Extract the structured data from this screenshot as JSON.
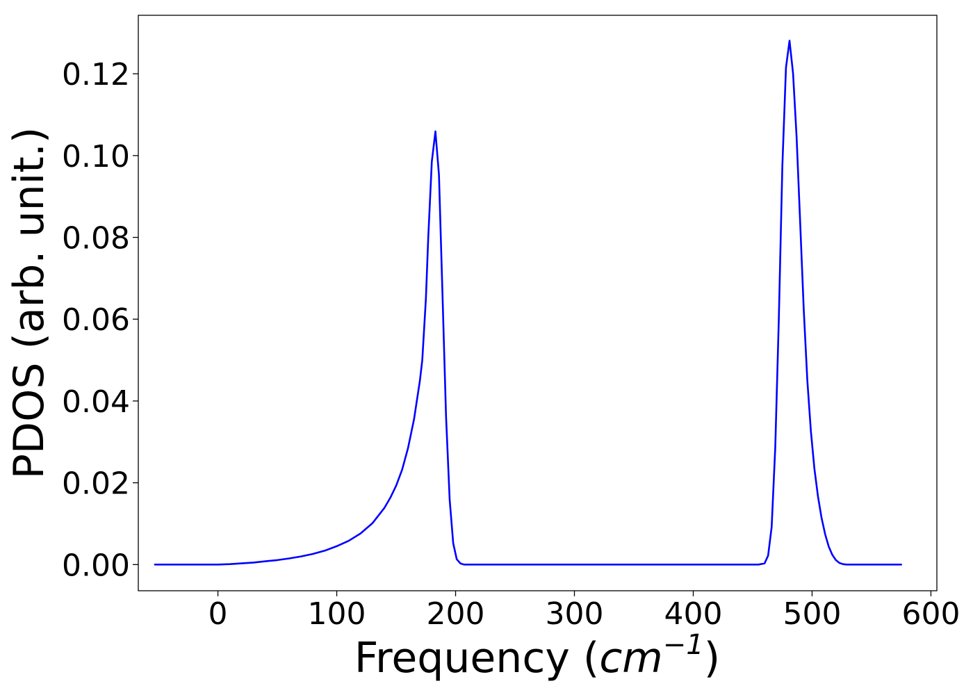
{
  "chart_data": {
    "type": "line",
    "xlabel": "Frequency",
    "xlabel_unit_base": "cm",
    "xlabel_unit_exp": "−1",
    "ylabel": "PDOS (arb. unit.)",
    "xlim": [
      -67,
      605
    ],
    "ylim": [
      -0.0064,
      0.1343
    ],
    "xticks": [
      0,
      100,
      200,
      300,
      400,
      500,
      600
    ],
    "xtick_labels": [
      "0",
      "100",
      "200",
      "300",
      "400",
      "500",
      "600"
    ],
    "yticks": [
      0.0,
      0.02,
      0.04,
      0.06,
      0.08,
      0.1,
      0.12
    ],
    "ytick_labels": [
      "0.00",
      "0.02",
      "0.04",
      "0.06",
      "0.08",
      "0.10",
      "0.12"
    ],
    "grid": false,
    "series": [
      {
        "color": "#0000ff",
        "x": [
          -53,
          0,
          10,
          20,
          30,
          40,
          50,
          60,
          70,
          80,
          90,
          100,
          110,
          120,
          130,
          140,
          145,
          150,
          155,
          160,
          165,
          170,
          172,
          175,
          177,
          180,
          183,
          186,
          189,
          192,
          195,
          198,
          201,
          204,
          207,
          210,
          220,
          300,
          400,
          455,
          460,
          463,
          466,
          469,
          472,
          475,
          478,
          481,
          484,
          487,
          490,
          493,
          496,
          499,
          502,
          505,
          508,
          511,
          514,
          517,
          520,
          523,
          526,
          529,
          532,
          535,
          540,
          575
        ],
        "y": [
          0,
          0,
          0.0001,
          0.0003,
          0.0005,
          0.0008,
          0.0011,
          0.0015,
          0.002,
          0.0026,
          0.0034,
          0.0045,
          0.0058,
          0.0076,
          0.0101,
          0.0138,
          0.0163,
          0.0193,
          0.0232,
          0.0285,
          0.0355,
          0.045,
          0.05,
          0.065,
          0.08,
          0.0985,
          0.1059,
          0.0953,
          0.0659,
          0.0362,
          0.0159,
          0.0052,
          0.0013,
          0.0003,
          0,
          0,
          0,
          0,
          0,
          0,
          0.0003,
          0.0022,
          0.0092,
          0.0287,
          0.06,
          0.0975,
          0.1215,
          0.1281,
          0.1201,
          0.1045,
          0.0833,
          0.0622,
          0.0451,
          0.0325,
          0.0233,
          0.0166,
          0.0114,
          0.0074,
          0.0044,
          0.0024,
          0.0011,
          0.0004,
          0.0001,
          0,
          0,
          0,
          0,
          0
        ]
      }
    ]
  }
}
